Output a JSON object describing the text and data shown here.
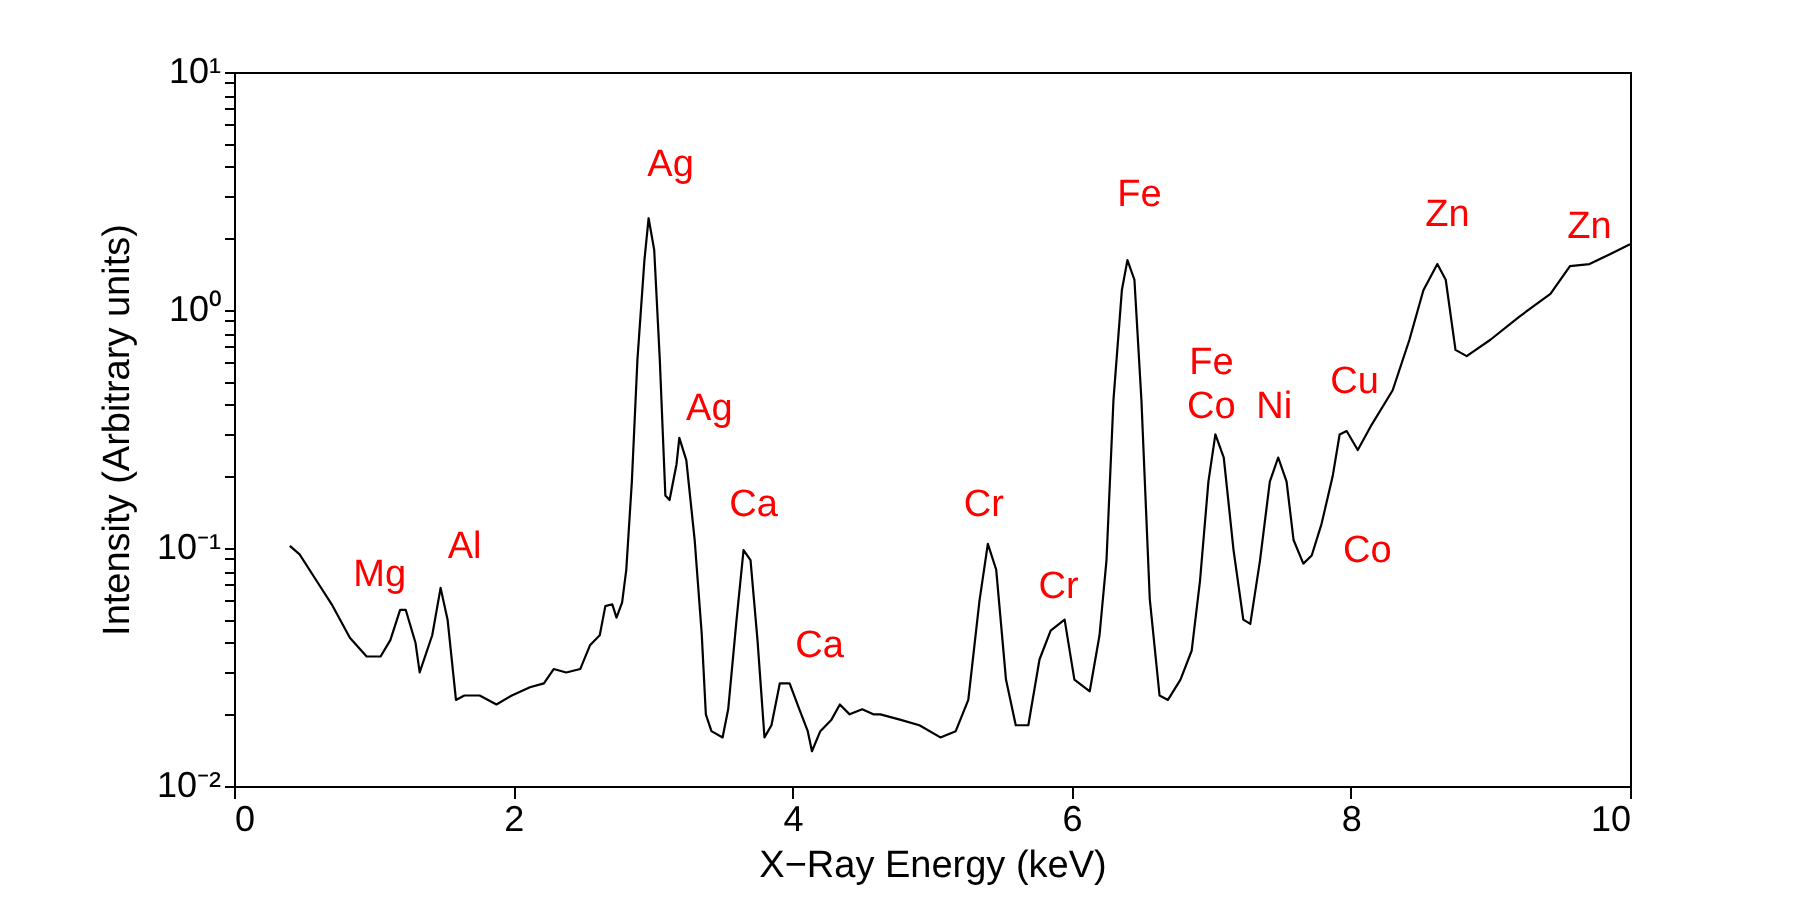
{
  "chart_data": {
    "type": "line",
    "xlabel": "X−Ray Energy (keV)",
    "ylabel": "Intensity (Arbitrary units)",
    "log": "y",
    "grid": false,
    "marker": "none",
    "line_style": "solid",
    "xlim": [
      0,
      10
    ],
    "xticks": [
      0,
      2,
      4,
      6,
      8,
      10
    ],
    "ylim": [
      0.01,
      10
    ],
    "yticks": [
      {
        "value": 0.01,
        "label": "10⁻²"
      },
      {
        "value": 0.02,
        "label": null
      },
      {
        "value": 0.03,
        "label": null
      },
      {
        "value": 0.04,
        "label": null
      },
      {
        "value": 0.05,
        "label": null
      },
      {
        "value": 0.06,
        "label": null
      },
      {
        "value": 0.07,
        "label": null
      },
      {
        "value": 0.08,
        "label": null
      },
      {
        "value": 0.09,
        "label": null
      },
      {
        "value": 0.1,
        "label": "10⁻¹"
      },
      {
        "value": 0.2,
        "label": null
      },
      {
        "value": 0.3,
        "label": null
      },
      {
        "value": 0.4,
        "label": null
      },
      {
        "value": 0.5,
        "label": null
      },
      {
        "value": 0.6,
        "label": null
      },
      {
        "value": 0.7,
        "label": null
      },
      {
        "value": 0.8,
        "label": null
      },
      {
        "value": 0.9,
        "label": null
      },
      {
        "value": 1,
        "label": "10⁰"
      },
      {
        "value": 2,
        "label": null
      },
      {
        "value": 3,
        "label": null
      },
      {
        "value": 4,
        "label": null
      },
      {
        "value": 5,
        "label": null
      },
      {
        "value": 6,
        "label": null
      },
      {
        "value": 7,
        "label": null
      },
      {
        "value": 8,
        "label": null
      },
      {
        "value": 9,
        "label": null
      },
      {
        "value": 10,
        "label": "10¹"
      }
    ],
    "series": [
      {
        "color": "#000000",
        "x": [
          0.4,
          0.47,
          0.59,
          0.7,
          0.83,
          0.95,
          1.05,
          1.12,
          1.19,
          1.23,
          1.3,
          1.33,
          1.42,
          1.48,
          1.53,
          1.59,
          1.65,
          1.76,
          1.88,
          1.99,
          2.12,
          2.22,
          2.29,
          2.38,
          2.48,
          2.55,
          2.62,
          2.66,
          2.71,
          2.74,
          2.78,
          2.81,
          2.85,
          2.89,
          2.94,
          2.97,
          3.01,
          3.05,
          3.09,
          3.12,
          3.17,
          3.19,
          3.24,
          3.3,
          3.35,
          3.38,
          3.42,
          3.5,
          3.54,
          3.6,
          3.65,
          3.7,
          3.75,
          3.8,
          3.85,
          3.91,
          3.98,
          4.05,
          4.11,
          4.14,
          4.2,
          4.28,
          4.34,
          4.41,
          4.5,
          4.58,
          4.63,
          4.77,
          4.91,
          5.06,
          5.17,
          5.26,
          5.34,
          5.4,
          5.46,
          5.53,
          5.6,
          5.69,
          5.77,
          5.85,
          5.95,
          6.02,
          6.13,
          6.2,
          6.25,
          6.3,
          6.36,
          6.4,
          6.45,
          6.5,
          6.56,
          6.63,
          6.69,
          6.78,
          6.86,
          6.92,
          6.98,
          7.03,
          7.09,
          7.16,
          7.23,
          7.28,
          7.35,
          7.42,
          7.48,
          7.54,
          7.59,
          7.66,
          7.72,
          7.79,
          7.87,
          7.92,
          7.97,
          8.05,
          8.15,
          8.3,
          8.42,
          8.52,
          8.62,
          8.68,
          8.75,
          8.83,
          9.0,
          9.21,
          9.43,
          9.57,
          9.71,
          9.86,
          10.0
        ],
        "values": [
          0.102,
          0.094,
          0.073,
          0.058,
          0.042,
          0.035,
          0.035,
          0.041,
          0.055,
          0.055,
          0.04,
          0.03,
          0.043,
          0.068,
          0.05,
          0.023,
          0.024,
          0.024,
          0.022,
          0.024,
          0.026,
          0.027,
          0.031,
          0.03,
          0.031,
          0.039,
          0.043,
          0.057,
          0.058,
          0.051,
          0.059,
          0.081,
          0.19,
          0.62,
          1.62,
          2.43,
          1.79,
          0.62,
          0.166,
          0.159,
          0.225,
          0.29,
          0.234,
          0.108,
          0.044,
          0.02,
          0.017,
          0.016,
          0.021,
          0.05,
          0.098,
          0.089,
          0.041,
          0.016,
          0.018,
          0.027,
          0.027,
          0.021,
          0.017,
          0.014,
          0.017,
          0.019,
          0.022,
          0.02,
          0.021,
          0.02,
          0.02,
          0.019,
          0.018,
          0.016,
          0.017,
          0.023,
          0.06,
          0.104,
          0.081,
          0.028,
          0.018,
          0.018,
          0.034,
          0.045,
          0.05,
          0.028,
          0.025,
          0.043,
          0.089,
          0.42,
          1.21,
          1.62,
          1.34,
          0.42,
          0.061,
          0.024,
          0.023,
          0.028,
          0.037,
          0.073,
          0.19,
          0.3,
          0.24,
          0.098,
          0.05,
          0.048,
          0.089,
          0.19,
          0.24,
          0.19,
          0.108,
          0.086,
          0.093,
          0.126,
          0.2,
          0.3,
          0.31,
          0.258,
          0.33,
          0.46,
          0.75,
          1.21,
          1.56,
          1.34,
          0.68,
          0.64,
          0.75,
          0.94,
          1.17,
          1.53,
          1.56,
          1.72,
          1.89
        ]
      }
    ],
    "annotations": [
      {
        "text": "Mg",
        "x": 1.23,
        "y": 0.055
      },
      {
        "text": "Al",
        "x": 1.48,
        "y": 0.068
      },
      {
        "text": "Ag",
        "x": 2.97,
        "y": 2.43
      },
      {
        "text": "Ag",
        "x": 3.19,
        "y": 0.29
      },
      {
        "text": "Ca",
        "x": 3.65,
        "y": 0.098
      },
      {
        "text": "Ca",
        "x": 3.98,
        "y": 0.027
      },
      {
        "text": "Cr",
        "x": 5.4,
        "y": 0.104
      },
      {
        "text": "Cr",
        "x": 5.95,
        "y": 0.05
      },
      {
        "text": "Fe",
        "x": 6.4,
        "y": 1.62
      },
      {
        "text": "Fe",
        "x": 7.03,
        "y": 0.3
      },
      {
        "text": "Co",
        "x": 7.03,
        "y": 0.3
      },
      {
        "text": "Ni",
        "x": 7.48,
        "y": 0.24
      },
      {
        "text": "Cu",
        "x": 7.97,
        "y": 0.31
      },
      {
        "text": "Co",
        "x": 7.66,
        "y": 0.086
      },
      {
        "text": "Zn",
        "x": 8.62,
        "y": 1.56
      },
      {
        "text": "Zn",
        "x": 9.71,
        "y": 1.56
      }
    ]
  }
}
